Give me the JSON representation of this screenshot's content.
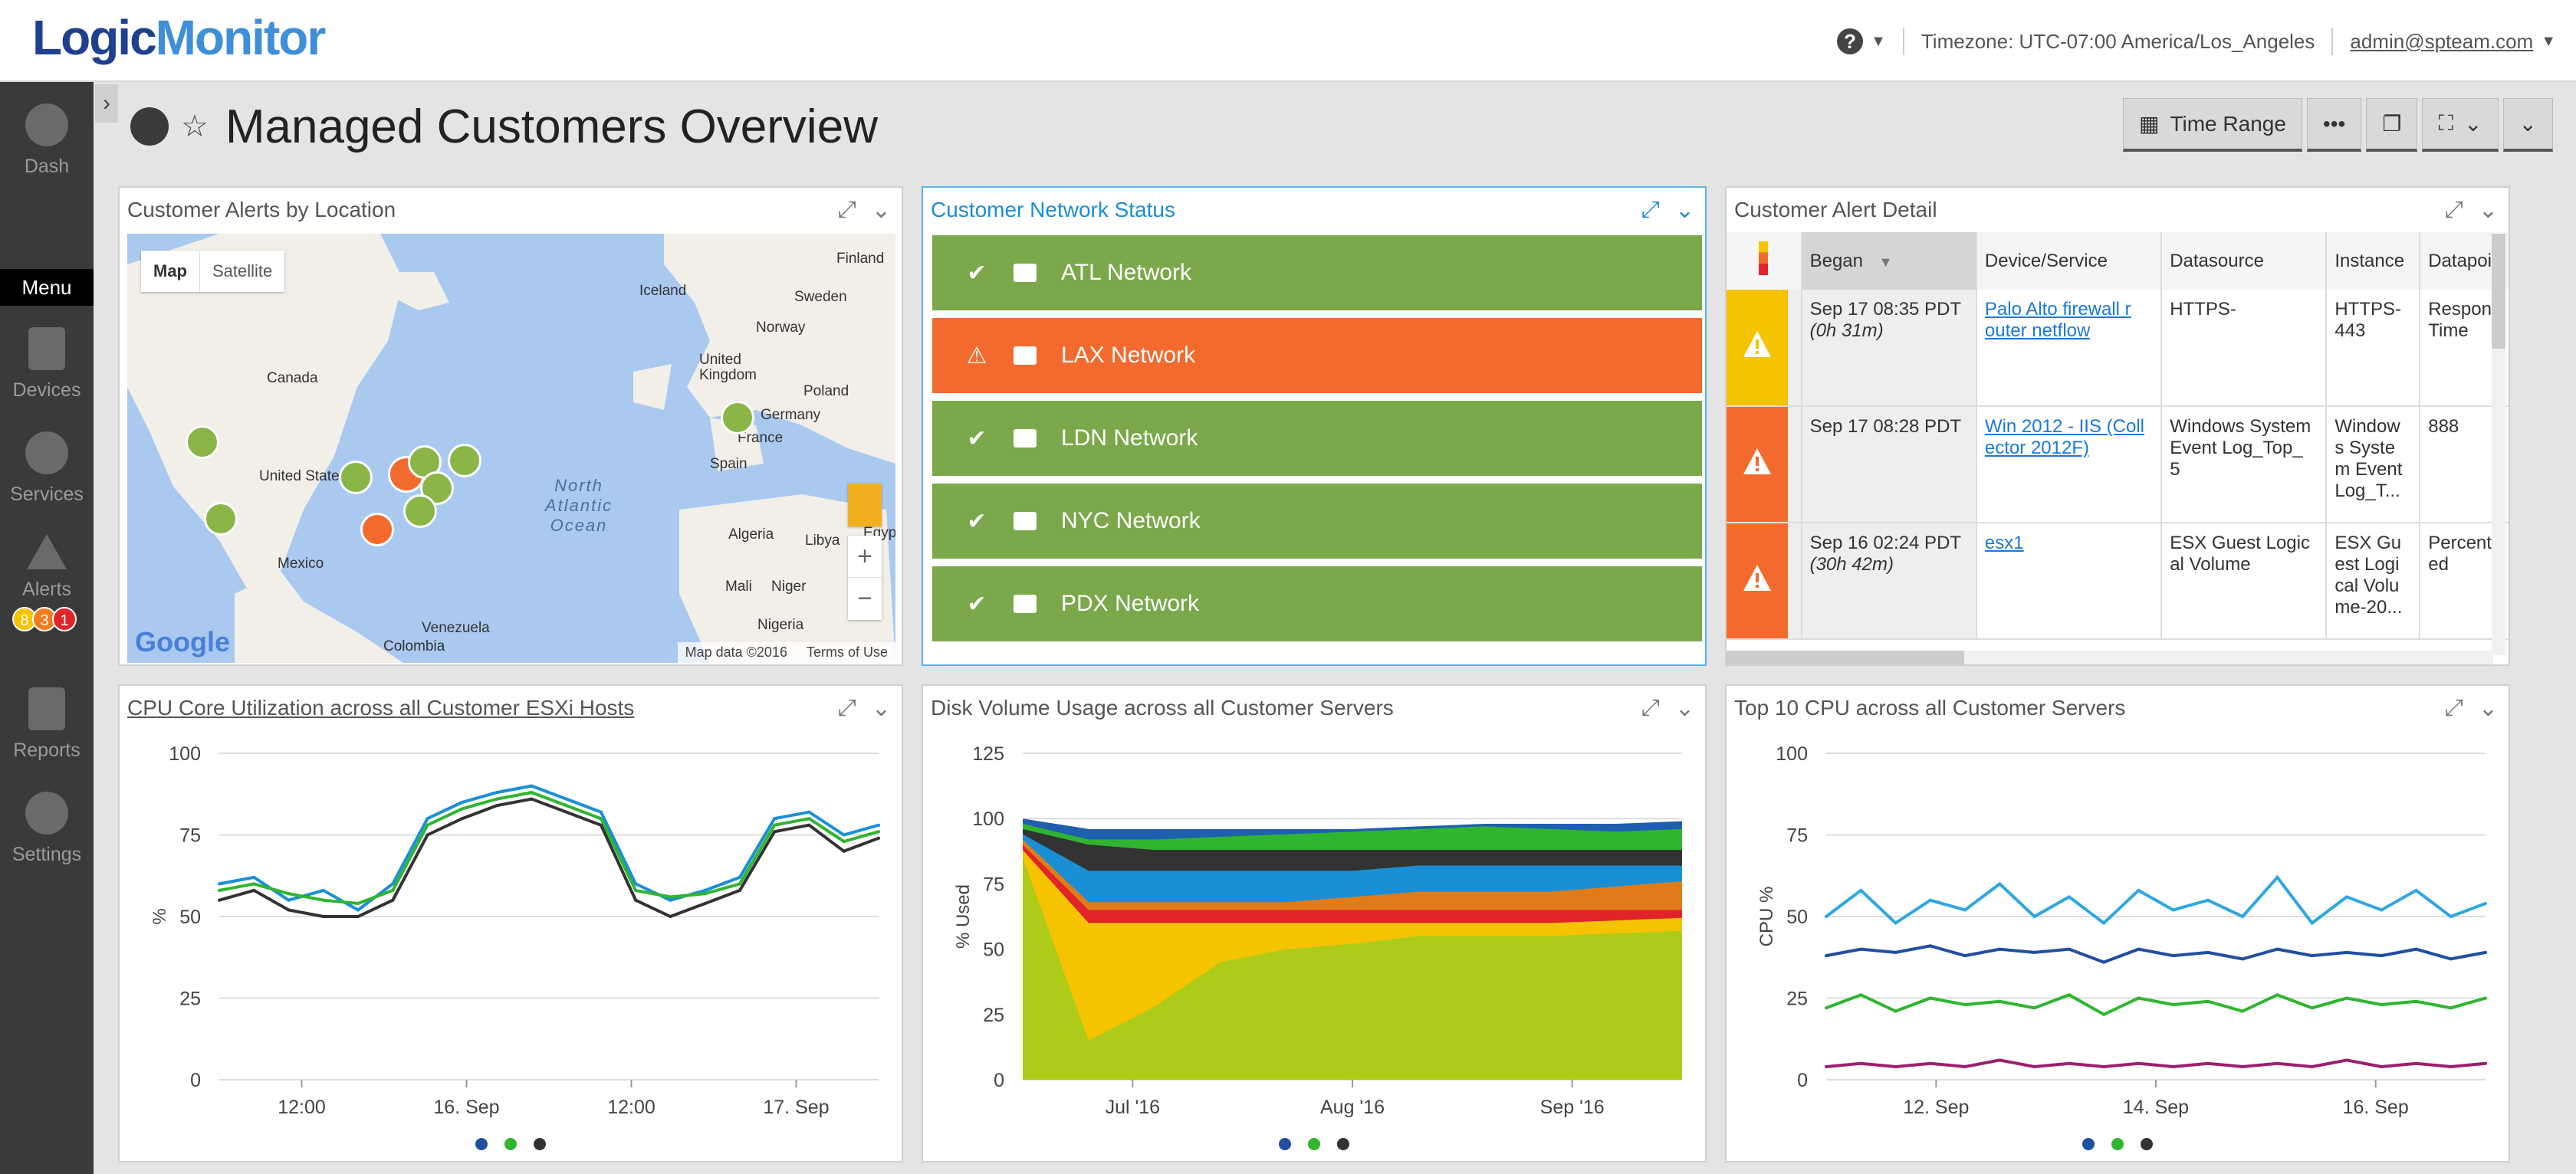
{
  "app": {
    "logo_a": "Logic",
    "logo_b": "Monitor"
  },
  "topbar": {
    "help": "?",
    "timezone": "Timezone: UTC-07:00 America/Los_Angeles",
    "user": "admin@spteam.com"
  },
  "sidebar": {
    "items": [
      {
        "label": "Dash"
      },
      {
        "label": "Menu"
      },
      {
        "label": "Devices"
      },
      {
        "label": "Services"
      },
      {
        "label": "Alerts"
      },
      {
        "label": "Reports"
      },
      {
        "label": "Settings"
      }
    ],
    "alert_counts": [
      {
        "value": "8",
        "color": "#f5c300"
      },
      {
        "value": "3",
        "color": "#f47a20"
      },
      {
        "value": "1",
        "color": "#e0242a"
      }
    ]
  },
  "page": {
    "title": "Managed Customers Overview",
    "time_range": "Time Range"
  },
  "widgets": {
    "map": {
      "title": "Customer Alerts by Location",
      "map_tab": "Map",
      "satellite_tab": "Satellite",
      "labels": [
        "Finland",
        "Iceland",
        "Sweden",
        "Norway",
        "United Kingdom",
        "Poland",
        "Germany",
        "France",
        "Canada",
        "United States",
        "Spain",
        "North Atlantic Ocean",
        "Algeria",
        "Libya",
        "Egypt",
        "Mali",
        "Niger",
        "Nigeria",
        "Mexico",
        "Venezuela",
        "Colombia"
      ],
      "google": "Google",
      "footer": "Map data ©2016",
      "terms": "Terms of Use"
    },
    "network": {
      "title": "Customer Network Status",
      "rows": [
        {
          "name": "ATL Network",
          "status": "ok",
          "color": "#7aa84a"
        },
        {
          "name": "LAX Network",
          "status": "alert",
          "color": "#f26a2e"
        },
        {
          "name": "LDN Network",
          "status": "ok",
          "color": "#7aa84a"
        },
        {
          "name": "NYC Network",
          "status": "ok",
          "color": "#7aa84a"
        },
        {
          "name": "PDX Network",
          "status": "ok",
          "color": "#7aa84a"
        }
      ]
    },
    "alerts": {
      "title": "Customer Alert Detail",
      "columns": [
        "Began",
        "Device/Service",
        "Datasource",
        "Instance",
        "Datapoi"
      ],
      "rows": [
        {
          "sev_color": "#f5c300",
          "began": "Sep 17 08:35 PDT",
          "duration": "(0h 31m)",
          "device": "Palo Alto firewall r outer netflow",
          "datasource": "HTTPS-",
          "instance": "HTTPS- 443",
          "datapoint": "Respons Time"
        },
        {
          "sev_color": "#f26a2e",
          "began": "Sep 17 08:28 PDT",
          "duration": "",
          "device": "Win 2012 - IIS (Coll ector 2012F)",
          "datasource": "Windows System Event Log_Top_ 5",
          "instance": "Window s Syste m Event Log_T...",
          "datapoint": "888"
        },
        {
          "sev_color": "#f26a2e",
          "began": "Sep 16 02:24 PDT",
          "duration": "(30h 42m)",
          "device": "esx1",
          "datasource": "ESX Guest Logic al Volume",
          "instance": "ESX Gu est Logi cal Volu me-20...",
          "datapoint": "Percentl ed"
        }
      ]
    },
    "cpu_core": {
      "title": "CPU Core Utilization across all Customer ESXi Hosts"
    },
    "disk": {
      "title": "Disk Volume Usage across all Customer Servers"
    },
    "top_cpu": {
      "title": "Top 10 CPU across all Customer Servers"
    }
  },
  "chart_data": [
    {
      "type": "line",
      "title": "CPU Core Utilization across all Customer ESXi Hosts",
      "ylabel": "%",
      "ylim": [
        0,
        100
      ],
      "yticks": [
        "100",
        "75",
        "50",
        "25",
        "0"
      ],
      "xticks": [
        "12:00",
        "16. Sep",
        "12:00",
        "17. Sep"
      ],
      "x": [
        "t0",
        "t1",
        "t2",
        "t3",
        "t4",
        "t5",
        "t6",
        "t7",
        "t8",
        "t9",
        "t10",
        "t11",
        "t12",
        "t13",
        "t14",
        "t15",
        "t16",
        "t17",
        "t18",
        "t19"
      ],
      "series": [
        {
          "color": "#1a8fd6",
          "values": [
            60,
            62,
            55,
            58,
            52,
            60,
            80,
            85,
            88,
            90,
            86,
            82,
            60,
            55,
            58,
            62,
            80,
            82,
            75,
            78
          ]
        },
        {
          "color": "#2fb52f",
          "values": [
            58,
            60,
            57,
            55,
            54,
            58,
            78,
            83,
            86,
            88,
            84,
            80,
            58,
            56,
            57,
            60,
            78,
            80,
            73,
            76
          ]
        },
        {
          "color": "#333333",
          "values": [
            55,
            58,
            52,
            50,
            50,
            55,
            75,
            80,
            84,
            86,
            82,
            78,
            55,
            50,
            54,
            58,
            76,
            78,
            70,
            74
          ]
        }
      ]
    },
    {
      "type": "area",
      "title": "Disk Volume Usage across all Customer Servers",
      "ylabel": "% Used",
      "ylim": [
        0,
        125
      ],
      "yticks": [
        "125",
        "100",
        "75",
        "50",
        "25",
        "0"
      ],
      "xticks": [
        "Jul '16",
        "Aug '16",
        "Sep '16"
      ],
      "x": [
        "t0",
        "t1",
        "t2",
        "t3",
        "t4",
        "t5",
        "t6",
        "t7",
        "t8",
        "t9",
        "t10"
      ],
      "series": [
        {
          "color": "#aecb1a",
          "values": [
            85,
            15,
            28,
            45,
            50,
            52,
            55,
            55,
            55,
            56,
            57
          ]
        },
        {
          "color": "#f5c300",
          "values": [
            88,
            60,
            60,
            60,
            60,
            60,
            60,
            60,
            60,
            61,
            62
          ]
        },
        {
          "color": "#e0242a",
          "values": [
            90,
            65,
            65,
            65,
            65,
            65,
            65,
            65,
            65,
            65,
            65
          ]
        },
        {
          "color": "#e07b1a",
          "values": [
            92,
            68,
            68,
            68,
            68,
            70,
            72,
            72,
            72,
            74,
            76
          ]
        },
        {
          "color": "#1a8fd6",
          "values": [
            94,
            80,
            80,
            80,
            80,
            80,
            82,
            82,
            82,
            82,
            82
          ]
        },
        {
          "color": "#333333",
          "values": [
            96,
            90,
            88,
            88,
            88,
            88,
            88,
            88,
            88,
            88,
            88
          ]
        },
        {
          "color": "#2fb52f",
          "values": [
            98,
            92,
            92,
            93,
            94,
            95,
            96,
            97,
            96,
            95,
            96
          ]
        },
        {
          "color": "#1f5fb0",
          "values": [
            100,
            96,
            96,
            96,
            96,
            96,
            97,
            98,
            98,
            98,
            99
          ]
        }
      ]
    },
    {
      "type": "line",
      "title": "Top 10 CPU across all Customer Servers",
      "ylabel": "CPU %",
      "ylim": [
        0,
        100
      ],
      "yticks": [
        "100",
        "75",
        "50",
        "25",
        "0"
      ],
      "xticks": [
        "12. Sep",
        "14. Sep",
        "16. Sep"
      ],
      "x": [
        "t0",
        "t1",
        "t2",
        "t3",
        "t4",
        "t5",
        "t6",
        "t7",
        "t8",
        "t9",
        "t10",
        "t11",
        "t12",
        "t13",
        "t14",
        "t15",
        "t16",
        "t17",
        "t18",
        "t19"
      ],
      "series": [
        {
          "color": "#2ea7e0",
          "values": [
            50,
            58,
            48,
            55,
            52,
            60,
            50,
            56,
            48,
            58,
            52,
            55,
            50,
            62,
            48,
            56,
            52,
            58,
            50,
            54
          ]
        },
        {
          "color": "#1f4fa0",
          "values": [
            38,
            40,
            39,
            41,
            38,
            40,
            39,
            40,
            36,
            40,
            38,
            39,
            37,
            40,
            38,
            39,
            38,
            40,
            37,
            39
          ]
        },
        {
          "color": "#2fb52f",
          "values": [
            22,
            26,
            21,
            25,
            23,
            24,
            22,
            26,
            20,
            25,
            23,
            24,
            21,
            26,
            22,
            25,
            23,
            24,
            22,
            25
          ]
        },
        {
          "color": "#9c1f6e",
          "values": [
            4,
            5,
            4,
            5,
            4,
            6,
            4,
            5,
            4,
            5,
            4,
            5,
            4,
            5,
            4,
            6,
            4,
            5,
            4,
            5
          ]
        }
      ]
    }
  ]
}
